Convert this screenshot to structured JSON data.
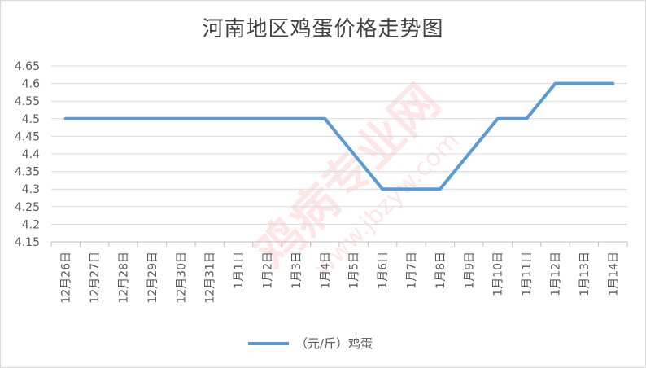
{
  "chart_data": {
    "type": "line",
    "title": "河南地区鸡蛋价格走势图",
    "xlabel": "",
    "ylabel": "",
    "categories": [
      "12月26日",
      "12月27日",
      "12月28日",
      "12月29日",
      "12月30日",
      "12月31日",
      "1月1日",
      "1月2日",
      "1月3日",
      "1月4日",
      "1月5日",
      "1月6日",
      "1月7日",
      "1月8日",
      "1月9日",
      "1月10日",
      "1月11日",
      "1月12日",
      "1月13日",
      "1月14日"
    ],
    "series": [
      {
        "name": "（元/斤）鸡蛋",
        "color": "#5b9bd5",
        "values": [
          4.5,
          4.5,
          4.5,
          4.5,
          4.5,
          4.5,
          4.5,
          4.5,
          4.5,
          4.5,
          4.4,
          4.3,
          4.3,
          4.3,
          4.4,
          4.5,
          4.5,
          4.6,
          4.6,
          4.6
        ]
      }
    ],
    "ylim": [
      4.15,
      4.65
    ],
    "yticks": [
      "4.15",
      "4.2",
      "4.25",
      "4.3",
      "4.35",
      "4.4",
      "4.45",
      "4.5",
      "4.55",
      "4.6",
      "4.65"
    ],
    "grid": true,
    "legend": "bottom"
  },
  "watermark": {
    "main": "鸡病专业网",
    "url": "www.jbzyw.com"
  },
  "colors": {
    "gridline": "#d9d9d9",
    "axis": "#bfbfbf",
    "title": "#404040"
  }
}
